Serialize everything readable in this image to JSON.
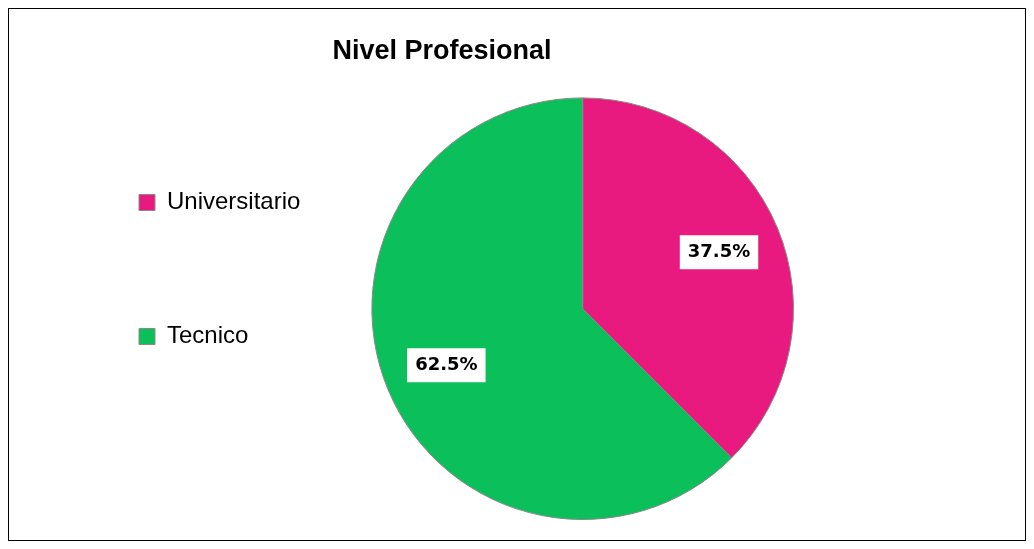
{
  "chart_data": {
    "type": "pie",
    "title": "Nivel Profesional",
    "categories": [
      "Universitario",
      "Tecnico"
    ],
    "values": [
      37.5,
      62.5
    ],
    "colors": [
      "#e8197f",
      "#0bbf5a"
    ],
    "value_labels": [
      "37.5%",
      "62.5%"
    ],
    "legend": "left"
  }
}
